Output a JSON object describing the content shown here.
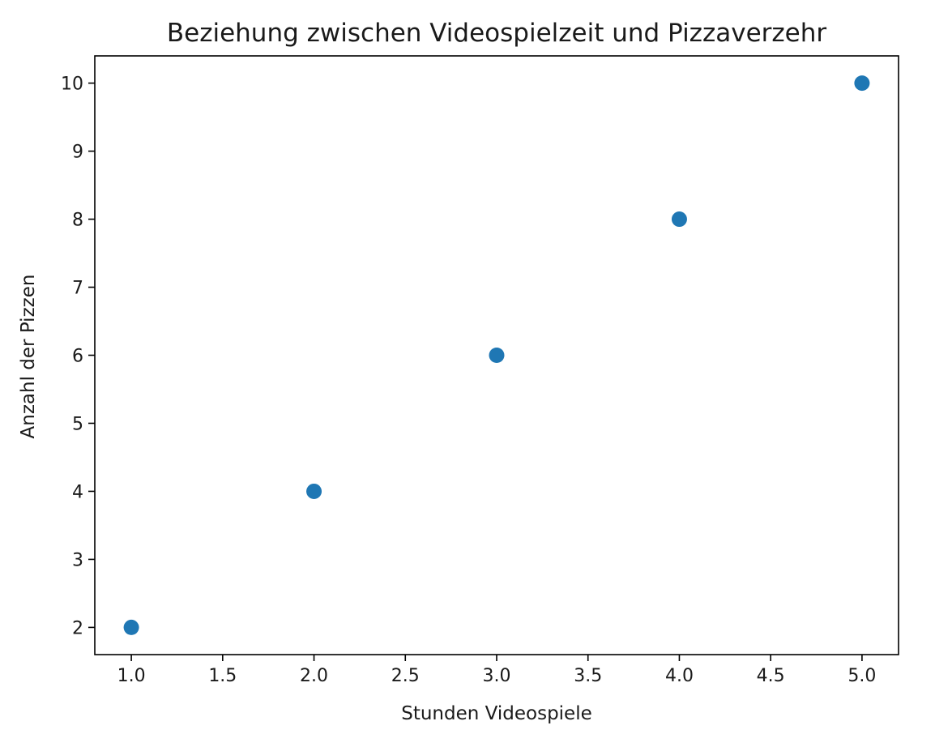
{
  "chart_data": {
    "type": "scatter",
    "title": "Beziehung zwischen Videospielzeit und Pizzaverzehr",
    "xlabel": "Stunden Videospiele",
    "ylabel": "Anzahl der Pizzen",
    "x": [
      1,
      2,
      3,
      4,
      5
    ],
    "y": [
      2,
      4,
      6,
      8,
      10
    ],
    "xlim": [
      0.8,
      5.2
    ],
    "ylim": [
      1.6,
      10.4
    ],
    "x_ticks": [
      "1.0",
      "1.5",
      "2.0",
      "2.5",
      "3.0",
      "3.5",
      "4.0",
      "4.5",
      "5.0"
    ],
    "y_ticks": [
      "2",
      "3",
      "4",
      "5",
      "6",
      "7",
      "8",
      "9",
      "10"
    ],
    "grid": false,
    "marker_color": "#1f77b4"
  }
}
